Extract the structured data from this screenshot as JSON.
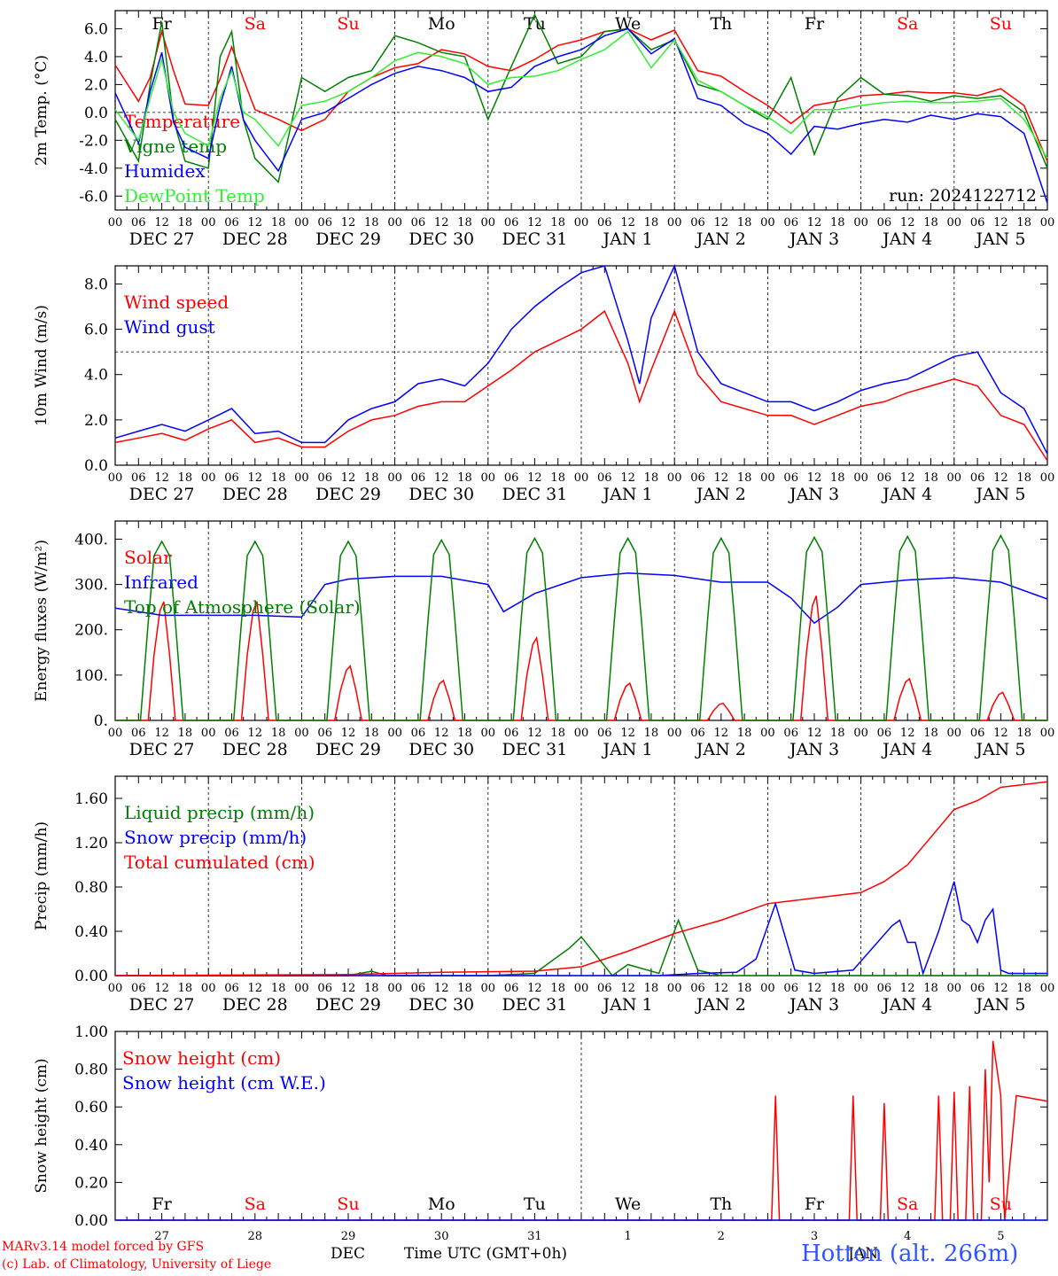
{
  "run_label": "run: 2024122712",
  "footer": {
    "credit1": "MARv3.14 model forced by GFS",
    "credit2": "(c) Lab. of Climatology, University of Liege",
    "month": "DEC",
    "month2": "JAN",
    "xlabel": "Time UTC (GMT+0h)",
    "station": "Hotton (alt. 266m)"
  },
  "colors": {
    "red": "#ff0000",
    "green": "#008000",
    "blue": "#0000ff",
    "lightgreen": "#33ee33",
    "station": "#3355ff"
  },
  "chart_data": {
    "type": "line",
    "days": 10,
    "hour_ticks": [
      "00",
      "06",
      "12",
      "18"
    ],
    "date_labels": [
      "DEC 27",
      "DEC 28",
      "DEC 29",
      "DEC 30",
      "DEC 31",
      "JAN  1",
      "JAN  2",
      "JAN  3",
      "JAN  4",
      "JAN  5"
    ],
    "weekday_labels": [
      "Fr",
      "Sa",
      "Su",
      "Mo",
      "Tu",
      "We",
      "Th",
      "Fr",
      "Sa",
      "Su"
    ],
    "weekday_colors": [
      "#000000",
      "#ff0000",
      "#ff0000",
      "#000000",
      "#000000",
      "#000000",
      "#000000",
      "#000000",
      "#ff0000",
      "#ff0000"
    ],
    "day_numbers": [
      "27",
      "28",
      "29",
      "30",
      "31",
      "1",
      "2",
      "3",
      "4",
      "5"
    ],
    "panels": [
      {
        "id": "temperature",
        "ylabel": "2m Temp. (°C)",
        "ylim": [
          -7,
          7.3
        ],
        "yticks": [
          -6,
          -4,
          -2,
          0,
          2,
          4,
          6
        ],
        "tick_format": "%.1f",
        "ref_lines": [
          0
        ],
        "show_weekdays": true,
        "series": [
          {
            "name": "Temperature",
            "color": "#ff0000",
            "x": [
              0,
              6,
              9,
              12,
              15,
              18,
              24,
              27,
              30,
              33,
              36,
              42,
              48,
              54,
              60,
              66,
              72,
              78,
              84,
              90,
              96,
              102,
              108,
              114,
              120,
              126,
              132,
              138,
              144,
              150,
              156,
              162,
              168,
              174,
              180,
              186,
              192,
              198,
              204,
              210,
              216,
              222,
              228,
              234,
              240
            ],
            "y": [
              3.4,
              0.8,
              2.5,
              5.8,
              3.0,
              0.6,
              0.5,
              2.4,
              4.7,
              2.4,
              0.2,
              -0.5,
              -1.3,
              -0.5,
              1.5,
              2.5,
              3.2,
              3.5,
              4.5,
              4.2,
              3.3,
              3.0,
              3.8,
              4.8,
              5.2,
              5.8,
              6.0,
              5.2,
              5.9,
              3.0,
              2.6,
              1.5,
              0.5,
              -0.8,
              0.5,
              0.8,
              1.2,
              1.3,
              1.5,
              1.4,
              1.4,
              1.2,
              1.7,
              0.5,
              -3.5
            ]
          },
          {
            "name": "Vigne temp",
            "color": "#008000",
            "x": [
              0,
              6,
              9,
              12,
              15,
              18,
              24,
              27,
              30,
              33,
              36,
              42,
              48,
              54,
              60,
              66,
              72,
              78,
              84,
              90,
              96,
              102,
              108,
              114,
              120,
              126,
              132,
              138,
              144,
              150,
              156,
              162,
              168,
              174,
              180,
              186,
              192,
              198,
              204,
              210,
              216,
              222,
              228,
              234,
              240
            ],
            "y": [
              -0.5,
              -3.5,
              2.0,
              6.5,
              -0.5,
              -3.5,
              -4.0,
              4.0,
              5.8,
              -0.5,
              -3.3,
              -5.0,
              2.5,
              1.5,
              2.5,
              3.0,
              5.5,
              5.0,
              4.3,
              4.0,
              -0.5,
              3.3,
              7.0,
              3.5,
              4.0,
              5.8,
              6.0,
              4.5,
              5.2,
              2.0,
              1.5,
              0.5,
              -0.5,
              2.5,
              -3.0,
              1.0,
              2.5,
              1.3,
              1.2,
              0.8,
              1.2,
              1.0,
              1.2,
              0.0,
              -4.0
            ]
          },
          {
            "name": "Humidex",
            "color": "#0000ff",
            "x": [
              0,
              6,
              9,
              12,
              15,
              18,
              24,
              27,
              30,
              33,
              36,
              42,
              48,
              54,
              60,
              66,
              72,
              78,
              84,
              90,
              96,
              102,
              108,
              114,
              120,
              126,
              132,
              138,
              144,
              150,
              156,
              162,
              168,
              174,
              180,
              186,
              192,
              198,
              204,
              210,
              216,
              222,
              228,
              234,
              240
            ],
            "y": [
              1.4,
              -2.2,
              1.5,
              4.3,
              -0.7,
              -2.5,
              -3.3,
              0.5,
              3.3,
              -0.5,
              -2.0,
              -4.2,
              -0.5,
              0.0,
              1.0,
              2.0,
              2.8,
              3.3,
              3.0,
              2.5,
              1.5,
              1.8,
              3.3,
              4.0,
              4.5,
              5.5,
              6.0,
              4.2,
              5.3,
              1.0,
              0.5,
              -0.8,
              -1.5,
              -3.0,
              -1.0,
              -1.2,
              -0.8,
              -0.5,
              -0.7,
              -0.2,
              -0.5,
              -0.1,
              -0.3,
              -1.5,
              -6.5
            ]
          },
          {
            "name": "DewPoint Temp",
            "color": "#33ee33",
            "x": [
              0,
              6,
              9,
              12,
              15,
              18,
              24,
              27,
              30,
              33,
              36,
              42,
              48,
              54,
              60,
              66,
              72,
              78,
              84,
              90,
              96,
              102,
              108,
              114,
              120,
              126,
              132,
              138,
              144,
              150,
              156,
              162,
              168,
              174,
              180,
              186,
              192,
              198,
              204,
              210,
              216,
              222,
              228,
              234,
              240
            ],
            "y": [
              0.2,
              -2.0,
              1.0,
              3.8,
              0.0,
              -1.5,
              -2.4,
              1.0,
              3.0,
              0.0,
              -0.5,
              -2.4,
              0.5,
              0.8,
              1.5,
              2.5,
              3.7,
              4.3,
              4.0,
              3.5,
              2.0,
              2.5,
              2.6,
              3.0,
              3.8,
              4.5,
              5.8,
              3.2,
              5.2,
              2.3,
              1.5,
              0.5,
              -0.3,
              -1.5,
              0.2,
              0.2,
              0.5,
              0.7,
              0.8,
              0.7,
              0.7,
              0.8,
              1.0,
              -0.5,
              -3.3
            ]
          }
        ]
      },
      {
        "id": "wind",
        "ylabel": "10m Wind (m/s)",
        "ylim": [
          0,
          8.8
        ],
        "yticks": [
          0,
          2,
          4,
          6,
          8
        ],
        "tick_format": "%.1f",
        "ref_lines": [
          5
        ],
        "series": [
          {
            "name": "Wind speed",
            "color": "#ff0000",
            "x": [
              0,
              6,
              12,
              18,
              24,
              30,
              36,
              42,
              48,
              54,
              60,
              66,
              72,
              78,
              84,
              90,
              96,
              102,
              108,
              114,
              120,
              126,
              132,
              135,
              138,
              144,
              150,
              156,
              162,
              168,
              174,
              180,
              186,
              192,
              198,
              204,
              210,
              216,
              222,
              228,
              234,
              240
            ],
            "y": [
              1.0,
              1.2,
              1.4,
              1.1,
              1.6,
              2.0,
              1.0,
              1.2,
              0.8,
              0.8,
              1.5,
              2.0,
              2.2,
              2.6,
              2.8,
              2.8,
              3.5,
              4.2,
              5.0,
              5.5,
              6.0,
              6.8,
              4.5,
              2.8,
              4.2,
              6.8,
              4.0,
              2.8,
              2.5,
              2.2,
              2.2,
              1.8,
              2.2,
              2.6,
              2.8,
              3.2,
              3.5,
              3.8,
              3.5,
              2.2,
              1.8,
              0.2
            ]
          },
          {
            "name": "Wind gust",
            "color": "#0000ff",
            "x": [
              0,
              6,
              12,
              18,
              24,
              30,
              36,
              42,
              48,
              54,
              60,
              66,
              72,
              78,
              84,
              90,
              96,
              102,
              108,
              114,
              120,
              126,
              132,
              135,
              138,
              144,
              150,
              156,
              162,
              168,
              174,
              180,
              186,
              192,
              198,
              204,
              210,
              216,
              222,
              228,
              234,
              240
            ],
            "y": [
              1.2,
              1.5,
              1.8,
              1.5,
              2.0,
              2.5,
              1.4,
              1.5,
              1.0,
              1.0,
              2.0,
              2.5,
              2.8,
              3.6,
              3.8,
              3.5,
              4.5,
              6.0,
              7.0,
              7.8,
              8.5,
              8.8,
              5.5,
              3.6,
              6.5,
              8.8,
              5.0,
              3.6,
              3.2,
              2.8,
              2.8,
              2.4,
              2.8,
              3.3,
              3.6,
              3.8,
              4.3,
              4.8,
              5.0,
              3.2,
              2.5,
              0.5
            ]
          }
        ]
      },
      {
        "id": "energy",
        "ylabel": "Energy fluxes (W/m²)",
        "ylim": [
          0,
          440
        ],
        "yticks": [
          0,
          100,
          200,
          300,
          400
        ],
        "tick_format": "%d.",
        "ref_lines": [],
        "series": [
          {
            "name": "Solar",
            "color": "#ff0000",
            "solar_peaks": [
              262,
              262,
              120,
              88,
              182,
              82,
              38,
              275,
              92,
              62
            ]
          },
          {
            "name": "Infrared",
            "color": "#0000ff",
            "x": [
              0,
              12,
              24,
              36,
              48,
              54,
              60,
              72,
              84,
              96,
              100,
              108,
              120,
              132,
              144,
              156,
              168,
              174,
              180,
              186,
              192,
              204,
              216,
              228,
              240
            ],
            "y": [
              248,
              232,
              232,
              232,
              228,
              300,
              312,
              318,
              318,
              300,
              240,
              280,
              315,
              325,
              320,
              305,
              305,
              270,
              215,
              250,
              300,
              310,
              315,
              305,
              268
            ]
          },
          {
            "name": "Top of Atmosphere (Solar)",
            "color": "#008000",
            "toa_peaks": [
              395,
              395,
              395,
              398,
              402,
              402,
              402,
              404,
              406,
              408
            ]
          }
        ]
      },
      {
        "id": "precip",
        "ylabel": "Precip (mm/h)",
        "ylim": [
          0,
          1.8
        ],
        "yticks": [
          0,
          0.4,
          0.8,
          1.2,
          1.6
        ],
        "tick_format": "%.2f",
        "ref_lines": [],
        "series": [
          {
            "name": "Liquid precip (mm/h)",
            "color": "#008000",
            "x": [
              0,
              60,
              66,
              70,
              96,
              108,
              117,
              120,
              128,
              132,
              140,
              145,
              150,
              156,
              168,
              180,
              240
            ],
            "y": [
              0,
              0,
              0.04,
              0,
              0,
              0.02,
              0.25,
              0.35,
              0,
              0.1,
              0.02,
              0.5,
              0.05,
              0,
              0,
              0,
              0
            ]
          },
          {
            "name": "Snow precip (mm/h)",
            "color": "#0000ff",
            "x": [
              0,
              140,
              150,
              160,
              165,
              170,
              175,
              180,
              190,
              200,
              202,
              204,
              206,
              208,
              212,
              216,
              218,
              220,
              222,
              224,
              226,
              228,
              230,
              232,
              234,
              236,
              238,
              240
            ],
            "y": [
              0,
              0,
              0.02,
              0.03,
              0.15,
              0.65,
              0.05,
              0.02,
              0.05,
              0.45,
              0.5,
              0.3,
              0.3,
              0.02,
              0.4,
              0.85,
              0.5,
              0.45,
              0.3,
              0.5,
              0.6,
              0.05,
              0.02,
              0.02,
              0.02,
              0.02,
              0.02,
              0.02
            ]
          },
          {
            "name": "Total cumulated (cm)",
            "color": "#ff0000",
            "x": [
              0,
              60,
              84,
              108,
              114,
              120,
              132,
              144,
              156,
              168,
              180,
              192,
              198,
              204,
              210,
              216,
              222,
              228,
              240
            ],
            "y": [
              0,
              0.01,
              0.03,
              0.04,
              0.06,
              0.08,
              0.22,
              0.38,
              0.5,
              0.65,
              0.7,
              0.75,
              0.85,
              1.0,
              1.25,
              1.5,
              1.58,
              1.7,
              1.75
            ]
          }
        ]
      },
      {
        "id": "snow",
        "ylabel": "Snow height (cm)",
        "ylim": [
          0,
          1.0
        ],
        "yticks": [
          0,
          0.2,
          0.4,
          0.6,
          0.8,
          1.0
        ],
        "tick_format": "%.2f",
        "ref_lines": [],
        "series": [
          {
            "name": "Snow height (cm)",
            "color": "#ff0000",
            "x": [
              0,
              169,
              170,
              171,
              189,
              190,
              191,
              197,
              198,
              199,
              211,
              212,
              213,
              215,
              216,
              217,
              219,
              220,
              221,
              223,
              224,
              225,
              226,
              228,
              229,
              232,
              240
            ],
            "y": [
              0,
              0,
              0.66,
              0,
              0,
              0.66,
              0,
              0,
              0.62,
              0,
              0,
              0.66,
              0,
              0,
              0.68,
              0,
              0,
              0.71,
              0,
              0,
              0.8,
              0.2,
              0.95,
              0.66,
              0,
              0.66,
              0.63
            ]
          },
          {
            "name": "Snow height (cm W.E.)",
            "color": "#0000ff",
            "x": [
              0,
              240
            ],
            "y": [
              0,
              0
            ]
          }
        ]
      }
    ]
  }
}
